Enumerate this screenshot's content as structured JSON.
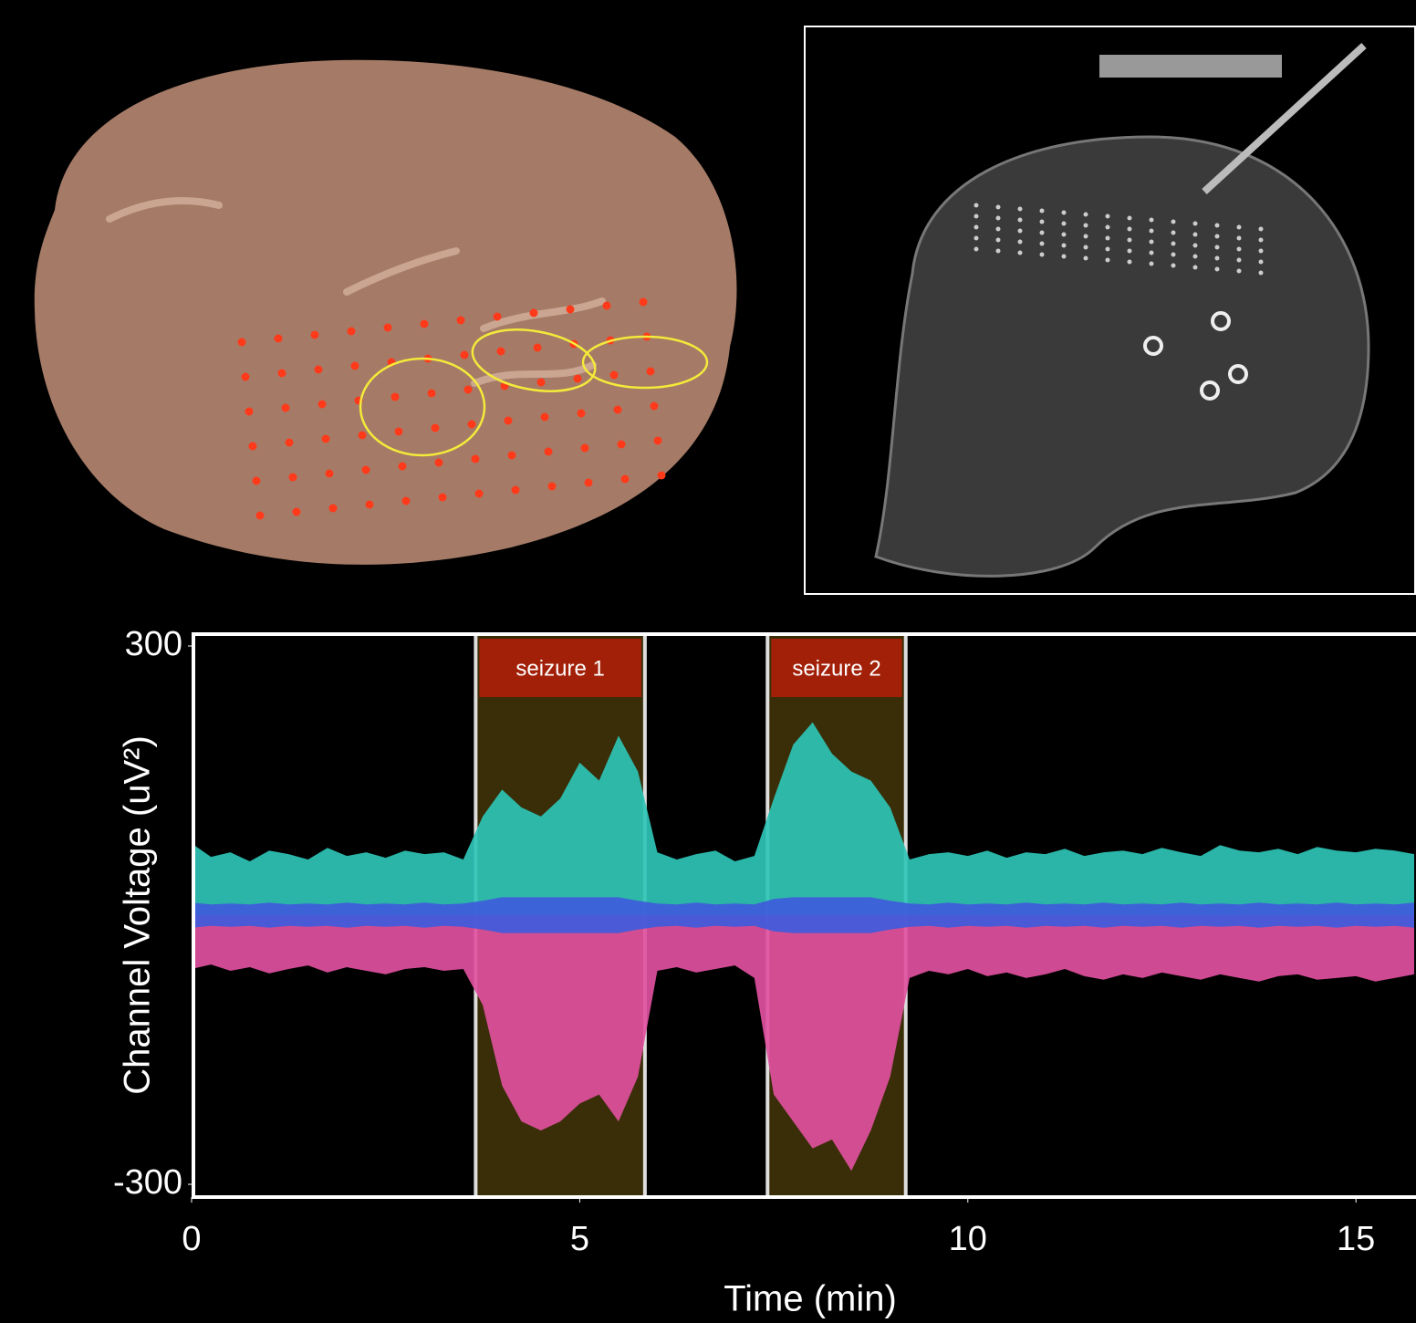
{
  "chart_data": {
    "type": "area",
    "xlabel": "Time (min)",
    "ylabel": "Channel Voltage (uV²)",
    "x": [
      0,
      0.25,
      0.5,
      0.75,
      1,
      1.25,
      1.5,
      1.75,
      2,
      2.25,
      2.5,
      2.75,
      3,
      3.25,
      3.5,
      3.75,
      4,
      4.25,
      4.5,
      4.75,
      5,
      5.25,
      5.5,
      5.75,
      6,
      6.25,
      6.5,
      6.75,
      7,
      7.25,
      7.5,
      7.75,
      8,
      8.25,
      8.5,
      8.75,
      9,
      9.25,
      9.5,
      9.75,
      10,
      10.25,
      10.5,
      10.75,
      11,
      11.25,
      11.5,
      11.75,
      12,
      12.25,
      12.5,
      12.75,
      13,
      13.25,
      13.5,
      13.75,
      14,
      14.25,
      14.5,
      14.75,
      15,
      15.25,
      15.5,
      15.75
    ],
    "series": [
      {
        "color": "#2ec4b6",
        "values": [
          80,
          65,
          70,
          60,
          72,
          68,
          62,
          75,
          66,
          70,
          64,
          72,
          68,
          70,
          62,
          110,
          140,
          120,
          110,
          130,
          170,
          150,
          200,
          160,
          70,
          62,
          68,
          72,
          60,
          66,
          130,
          190,
          215,
          180,
          160,
          150,
          120,
          62,
          68,
          70,
          66,
          72,
          64,
          70,
          68,
          74,
          66,
          70,
          72,
          68,
          75,
          70,
          66,
          78,
          72,
          70,
          74,
          68,
          76,
          72,
          70,
          74,
          72,
          68
        ]
      },
      {
        "color": "#e0509e",
        "values": [
          -60,
          -55,
          -62,
          -58,
          -65,
          -60,
          -56,
          -64,
          -58,
          -62,
          -66,
          -60,
          -58,
          -62,
          -60,
          -100,
          -190,
          -230,
          -240,
          -230,
          -210,
          -200,
          -230,
          -180,
          -62,
          -58,
          -64,
          -60,
          -56,
          -70,
          -200,
          -230,
          -260,
          -250,
          -285,
          -240,
          -180,
          -70,
          -62,
          -66,
          -60,
          -68,
          -64,
          -70,
          -66,
          -60,
          -68,
          -72,
          -66,
          -70,
          -64,
          -68,
          -72,
          -66,
          -70,
          -74,
          -68,
          -66,
          -72,
          -70,
          -68,
          -74,
          -70,
          -66
        ]
      },
      {
        "color": "#3f5bdc",
        "values": [
          14,
          12,
          13,
          12,
          14,
          12,
          13,
          12,
          14,
          12,
          13,
          12,
          14,
          12,
          13,
          16,
          20,
          20,
          20,
          20,
          20,
          20,
          20,
          16,
          13,
          12,
          14,
          12,
          13,
          12,
          18,
          20,
          20,
          20,
          20,
          20,
          16,
          13,
          12,
          14,
          12,
          13,
          12,
          14,
          12,
          13,
          12,
          14,
          12,
          13,
          12,
          14,
          12,
          13,
          12,
          14,
          12,
          13,
          12,
          14,
          12,
          13,
          12,
          14
        ]
      },
      {
        "color": "#3f5bdc",
        "values": [
          -14,
          -12,
          -13,
          -12,
          -14,
          -12,
          -13,
          -12,
          -14,
          -12,
          -13,
          -12,
          -14,
          -12,
          -13,
          -16,
          -20,
          -20,
          -20,
          -20,
          -20,
          -20,
          -20,
          -16,
          -13,
          -12,
          -14,
          -12,
          -13,
          -12,
          -18,
          -20,
          -20,
          -20,
          -20,
          -20,
          -16,
          -13,
          -12,
          -14,
          -12,
          -13,
          -12,
          -14,
          -12,
          -13,
          -12,
          -14,
          -12,
          -13,
          -12,
          -14,
          -12,
          -13,
          -12,
          -14,
          -12,
          -13,
          -12,
          -14,
          -12,
          -13,
          -12,
          -14
        ]
      }
    ],
    "xlim": [
      0,
      15.75
    ],
    "ylim": [
      -300,
      300
    ],
    "xticks": [
      0,
      5,
      10,
      15
    ],
    "yticks": [
      -300,
      300
    ],
    "regions": [
      {
        "label": "seizure 1",
        "start": 3.66,
        "end": 5.84,
        "color": "#3a2e08",
        "label_color": "#a32008"
      },
      {
        "label": "seizure 2",
        "start": 7.42,
        "end": 9.2,
        "color": "#3a2e08",
        "label_color": "#a32008"
      }
    ]
  }
}
